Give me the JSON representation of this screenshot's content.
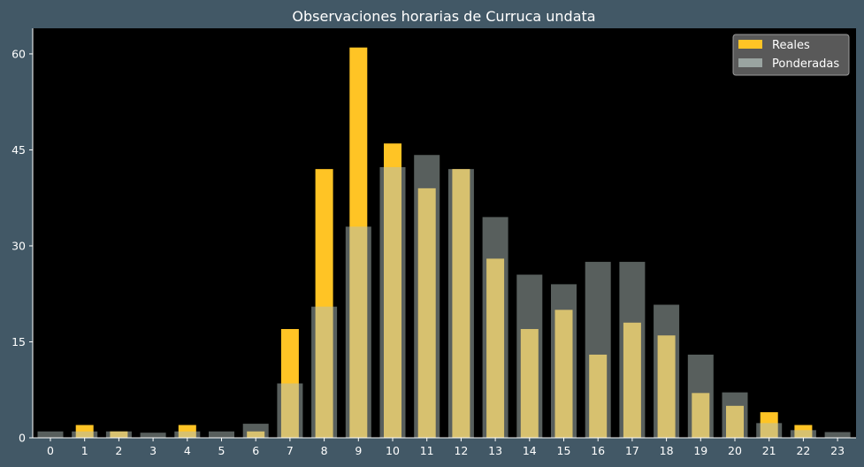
{
  "chart_data": {
    "type": "bar",
    "title": "Observaciones horarias de Curruca undata",
    "xlabel": "",
    "ylabel": "",
    "categories": [
      "0",
      "1",
      "2",
      "3",
      "4",
      "5",
      "6",
      "7",
      "8",
      "9",
      "10",
      "11",
      "12",
      "13",
      "14",
      "15",
      "16",
      "17",
      "18",
      "19",
      "20",
      "21",
      "22",
      "23"
    ],
    "series": [
      {
        "name": "Reales",
        "color": "#ffc425",
        "values": [
          0,
          2,
          1,
          0,
          2,
          0,
          1,
          17,
          42,
          61,
          46,
          39,
          42,
          28,
          17,
          20,
          13,
          18,
          16,
          7,
          5,
          4,
          2,
          0
        ]
      },
      {
        "name": "Ponderadas",
        "color": "#b0bdb9",
        "values": [
          1,
          1,
          1,
          0.8,
          1,
          1,
          2.2,
          8.5,
          20.5,
          33,
          42.3,
          44.2,
          42,
          34.5,
          25.5,
          24,
          27.5,
          27.5,
          20.8,
          13,
          7.1,
          2.3,
          1.2,
          0.9
        ]
      }
    ],
    "ylim": [
      0,
      64
    ],
    "yticks": [
      0,
      15,
      30,
      45,
      60
    ],
    "legend_position": "top-right",
    "grid": false
  }
}
